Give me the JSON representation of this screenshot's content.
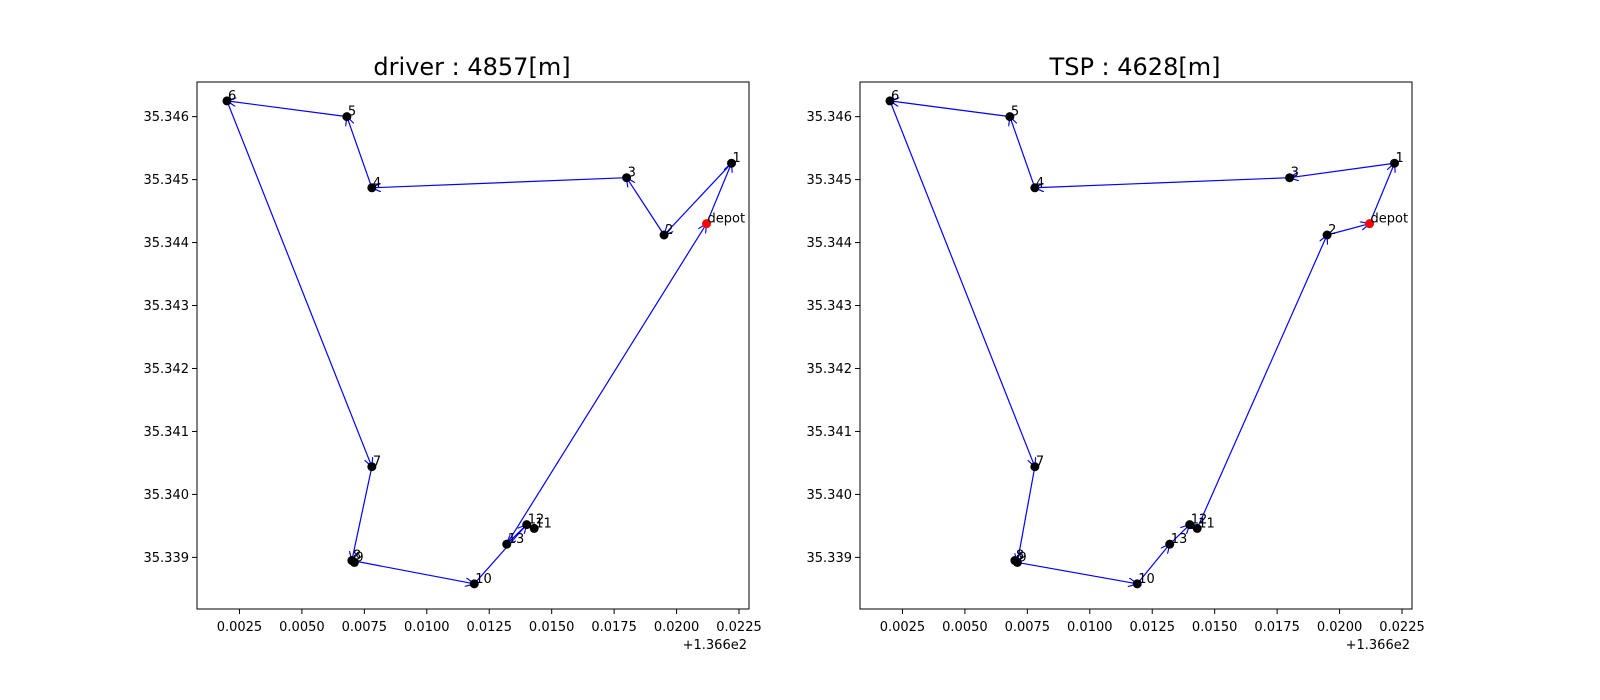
{
  "chart_data": [
    {
      "type": "scatter",
      "title": "driver : 4857[m]",
      "xlabel": "",
      "ylabel": "",
      "x_offset_label": "+1.366e2",
      "xlim": [
        0.0008,
        0.0229
      ],
      "ylim": [
        35.33818,
        35.34655
      ],
      "xticks": [
        "0.0025",
        "0.0050",
        "0.0075",
        "0.0100",
        "0.0125",
        "0.0150",
        "0.0175",
        "0.0200",
        "0.0225"
      ],
      "xtick_values": [
        0.0025,
        0.005,
        0.0075,
        0.01,
        0.0125,
        0.015,
        0.0175,
        0.02,
        0.0225
      ],
      "yticks": [
        "35.339",
        "35.340",
        "35.341",
        "35.342",
        "35.343",
        "35.344",
        "35.345",
        "35.346"
      ],
      "ytick_values": [
        35.339,
        35.34,
        35.341,
        35.342,
        35.343,
        35.344,
        35.345,
        35.346
      ],
      "points": [
        {
          "label": "depot",
          "x": 0.0212,
          "y": 35.3443,
          "color": "#ff0000"
        },
        {
          "label": "1",
          "x": 0.0222,
          "y": 35.34526,
          "color": "#000000"
        },
        {
          "label": "2",
          "x": 0.0195,
          "y": 35.34412,
          "color": "#000000"
        },
        {
          "label": "3",
          "x": 0.018,
          "y": 35.34503,
          "color": "#000000"
        },
        {
          "label": "4",
          "x": 0.0078,
          "y": 35.34487,
          "color": "#000000"
        },
        {
          "label": "5",
          "x": 0.0068,
          "y": 35.346,
          "color": "#000000"
        },
        {
          "label": "6",
          "x": 0.002,
          "y": 35.34625,
          "color": "#000000"
        },
        {
          "label": "7",
          "x": 0.0078,
          "y": 35.34044,
          "color": "#000000"
        },
        {
          "label": "8",
          "x": 0.007,
          "y": 35.33895,
          "color": "#000000"
        },
        {
          "label": "9",
          "x": 0.0071,
          "y": 35.33892,
          "color": "#000000"
        },
        {
          "label": "10",
          "x": 0.0119,
          "y": 35.33858,
          "color": "#000000"
        },
        {
          "label": "11",
          "x": 0.0143,
          "y": 35.33946,
          "color": "#000000"
        },
        {
          "label": "12",
          "x": 0.014,
          "y": 35.33952,
          "color": "#000000"
        },
        {
          "label": "13",
          "x": 0.0132,
          "y": 35.33921,
          "color": "#000000"
        }
      ],
      "route": [
        "depot",
        "1",
        "2",
        "3",
        "4",
        "5",
        "6",
        "7",
        "8",
        "10",
        "12",
        "13",
        "depot"
      ],
      "route_color": "#0000ff"
    },
    {
      "type": "scatter",
      "title": "TSP : 4628[m]",
      "xlabel": "",
      "ylabel": "",
      "x_offset_label": "+1.366e2",
      "xlim": [
        0.0008,
        0.0229
      ],
      "ylim": [
        35.33818,
        35.34655
      ],
      "xticks": [
        "0.0025",
        "0.0050",
        "0.0075",
        "0.0100",
        "0.0125",
        "0.0150",
        "0.0175",
        "0.0200",
        "0.0225"
      ],
      "xtick_values": [
        0.0025,
        0.005,
        0.0075,
        0.01,
        0.0125,
        0.015,
        0.0175,
        0.02,
        0.0225
      ],
      "yticks": [
        "35.339",
        "35.340",
        "35.341",
        "35.342",
        "35.343",
        "35.344",
        "35.345",
        "35.346"
      ],
      "ytick_values": [
        35.339,
        35.34,
        35.341,
        35.342,
        35.343,
        35.344,
        35.345,
        35.346
      ],
      "points": [
        {
          "label": "depot",
          "x": 0.0212,
          "y": 35.3443,
          "color": "#ff0000"
        },
        {
          "label": "1",
          "x": 0.0222,
          "y": 35.34526,
          "color": "#000000"
        },
        {
          "label": "2",
          "x": 0.0195,
          "y": 35.34412,
          "color": "#000000"
        },
        {
          "label": "3",
          "x": 0.018,
          "y": 35.34503,
          "color": "#000000"
        },
        {
          "label": "4",
          "x": 0.0078,
          "y": 35.34487,
          "color": "#000000"
        },
        {
          "label": "5",
          "x": 0.0068,
          "y": 35.346,
          "color": "#000000"
        },
        {
          "label": "6",
          "x": 0.002,
          "y": 35.34625,
          "color": "#000000"
        },
        {
          "label": "7",
          "x": 0.0078,
          "y": 35.34044,
          "color": "#000000"
        },
        {
          "label": "8",
          "x": 0.007,
          "y": 35.33895,
          "color": "#000000"
        },
        {
          "label": "9",
          "x": 0.0071,
          "y": 35.33892,
          "color": "#000000"
        },
        {
          "label": "10",
          "x": 0.0119,
          "y": 35.33858,
          "color": "#000000"
        },
        {
          "label": "11",
          "x": 0.0143,
          "y": 35.33946,
          "color": "#000000"
        },
        {
          "label": "12",
          "x": 0.014,
          "y": 35.33952,
          "color": "#000000"
        },
        {
          "label": "13",
          "x": 0.0132,
          "y": 35.33921,
          "color": "#000000"
        }
      ],
      "route": [
        "depot",
        "1",
        "3",
        "4",
        "5",
        "6",
        "7",
        "9",
        "10",
        "13",
        "12",
        "11",
        "2",
        "depot"
      ],
      "route_color": "#0000ff"
    }
  ]
}
